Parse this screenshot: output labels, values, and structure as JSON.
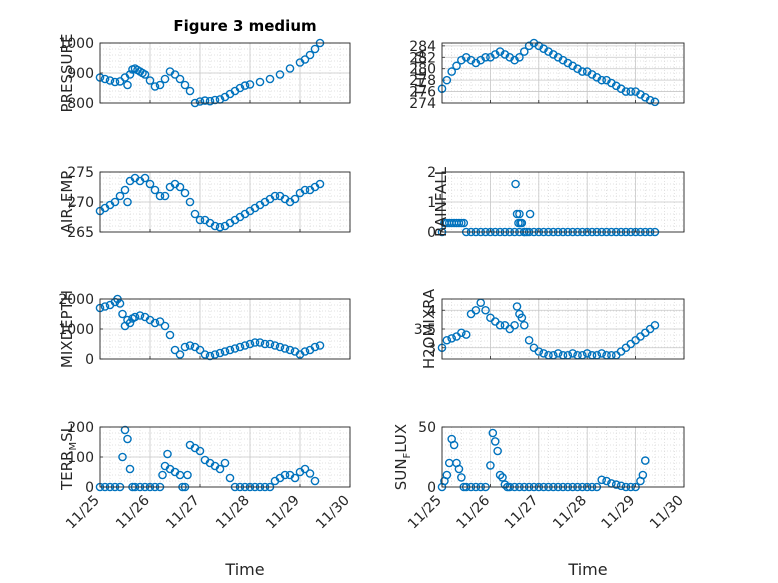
{
  "figure": {
    "title": "Figure 3 medium",
    "xlabel_left": "Time",
    "xlabel_right": "Time",
    "marker_color": "#0072BD",
    "grid_color": "#d9d9d9"
  },
  "chart_data": [
    {
      "type": "scatter",
      "ylabel": "PRESSURE",
      "xlim": [
        0,
        5
      ],
      "ylim": [
        800,
        1000
      ],
      "yticks": [
        800,
        900,
        1000
      ],
      "grid": true,
      "show_xticks": false,
      "x": [
        0.0,
        0.1,
        0.2,
        0.3,
        0.4,
        0.5,
        0.55,
        0.6,
        0.65,
        0.7,
        0.75,
        0.8,
        0.85,
        0.9,
        1.0,
        1.1,
        1.2,
        1.3,
        1.4,
        1.5,
        1.6,
        1.7,
        1.8,
        1.9,
        2.0,
        2.1,
        2.2,
        2.3,
        2.4,
        2.5,
        2.6,
        2.7,
        2.8,
        2.9,
        3.0,
        3.2,
        3.4,
        3.6,
        3.8,
        4.0,
        4.1,
        4.2,
        4.3,
        4.4
      ],
      "y": [
        885,
        880,
        875,
        870,
        872,
        885,
        860,
        895,
        912,
        915,
        910,
        905,
        900,
        895,
        875,
        855,
        860,
        880,
        905,
        895,
        880,
        860,
        840,
        800,
        805,
        808,
        806,
        810,
        812,
        820,
        830,
        840,
        850,
        858,
        862,
        870,
        880,
        895,
        915,
        935,
        945,
        960,
        980,
        1000
      ]
    },
    {
      "type": "scatter",
      "ylabel": "THETA",
      "xlim": [
        0,
        5
      ],
      "ylim": [
        274,
        284.5
      ],
      "yticks": [
        274,
        276,
        278,
        280,
        282,
        284
      ],
      "grid": true,
      "show_xticks": false,
      "x": [
        0.0,
        0.1,
        0.2,
        0.3,
        0.4,
        0.5,
        0.6,
        0.7,
        0.8,
        0.9,
        1.0,
        1.1,
        1.2,
        1.3,
        1.4,
        1.5,
        1.6,
        1.7,
        1.8,
        1.9,
        2.0,
        2.1,
        2.2,
        2.3,
        2.4,
        2.5,
        2.6,
        2.7,
        2.8,
        2.9,
        3.0,
        3.1,
        3.2,
        3.3,
        3.4,
        3.5,
        3.6,
        3.7,
        3.8,
        3.9,
        4.0,
        4.1,
        4.2,
        4.3,
        4.4
      ],
      "y": [
        276.5,
        278,
        279.5,
        280.5,
        281.5,
        282,
        281.5,
        281,
        281.5,
        282,
        282,
        282.5,
        283,
        282.5,
        282,
        281.5,
        282,
        283,
        284,
        284.5,
        284,
        283.5,
        283,
        282.5,
        282,
        281.5,
        281,
        280.5,
        280,
        279.5,
        279.5,
        279,
        278.5,
        278,
        278,
        277.5,
        277,
        276.5,
        276,
        276,
        276,
        275.5,
        275,
        274.5,
        274.2
      ]
    },
    {
      "type": "scatter",
      "ylabel": "AIR_TEMP",
      "xlim": [
        0,
        5
      ],
      "ylim": [
        265,
        275
      ],
      "yticks": [
        265,
        270,
        275
      ],
      "grid": true,
      "show_xticks": false,
      "x": [
        0.0,
        0.1,
        0.2,
        0.3,
        0.4,
        0.5,
        0.55,
        0.6,
        0.7,
        0.8,
        0.9,
        1.0,
        1.1,
        1.2,
        1.3,
        1.4,
        1.5,
        1.6,
        1.7,
        1.8,
        1.9,
        2.0,
        2.1,
        2.2,
        2.3,
        2.4,
        2.5,
        2.6,
        2.7,
        2.8,
        2.9,
        3.0,
        3.1,
        3.2,
        3.3,
        3.4,
        3.5,
        3.6,
        3.7,
        3.8,
        3.9,
        4.0,
        4.1,
        4.2,
        4.3,
        4.4
      ],
      "y": [
        268.5,
        269,
        269.5,
        270,
        271,
        272,
        270,
        273.5,
        274,
        273.5,
        274,
        273,
        272,
        271,
        271,
        272.5,
        273,
        272.5,
        271.5,
        270,
        268,
        267,
        267,
        266.5,
        266,
        265.8,
        266,
        266.5,
        267,
        267.5,
        268,
        268.5,
        269,
        269.5,
        270,
        270.5,
        271,
        271,
        270.5,
        270,
        270.5,
        271.5,
        272,
        272,
        272.5,
        273
      ]
    },
    {
      "type": "scatter",
      "ylabel": "RAINFALL",
      "xlim": [
        0,
        5
      ],
      "ylim": [
        0,
        2
      ],
      "yticks": [
        0,
        1,
        2
      ],
      "grid": true,
      "show_xticks": false,
      "x": [
        0.0,
        0.05,
        0.1,
        0.15,
        0.2,
        0.25,
        0.3,
        0.35,
        0.4,
        0.45,
        0.5,
        0.6,
        0.7,
        0.8,
        0.9,
        1.0,
        1.1,
        1.2,
        1.3,
        1.4,
        1.5,
        1.6,
        1.7,
        1.8,
        1.9,
        2.0,
        2.1,
        2.2,
        2.3,
        2.4,
        2.5,
        2.6,
        2.7,
        2.8,
        2.9,
        3.0,
        3.1,
        3.2,
        3.3,
        3.4,
        3.5,
        3.6,
        3.7,
        3.8,
        3.9,
        4.0,
        4.1,
        4.2,
        4.3,
        4.4,
        1.52,
        1.55,
        1.58,
        1.6,
        1.62,
        1.65,
        1.7,
        1.75,
        1.82
      ],
      "y": [
        0.0,
        0.3,
        0.3,
        0.3,
        0.3,
        0.3,
        0.3,
        0.3,
        0.3,
        0.3,
        0.0,
        0.0,
        0.0,
        0.0,
        0.0,
        0.0,
        0.0,
        0.0,
        0.0,
        0.0,
        0.0,
        0.0,
        0.0,
        0.0,
        0.0,
        0.0,
        0.0,
        0.0,
        0.0,
        0.0,
        0.0,
        0.0,
        0.0,
        0.0,
        0.0,
        0.0,
        0.0,
        0.0,
        0.0,
        0.0,
        0.0,
        0.0,
        0.0,
        0.0,
        0.0,
        0.0,
        0.0,
        0.0,
        0.0,
        0.0,
        1.6,
        0.6,
        0.3,
        0.6,
        0.3,
        0.3,
        0.0,
        0.0,
        0.6
      ]
    },
    {
      "type": "scatter",
      "ylabel": "MIXDEPTH",
      "xlim": [
        0,
        5
      ],
      "ylim": [
        0,
        2000
      ],
      "yticks": [
        0,
        1000,
        2000
      ],
      "grid": true,
      "show_xticks": false,
      "x": [
        0.0,
        0.1,
        0.2,
        0.3,
        0.35,
        0.4,
        0.45,
        0.5,
        0.55,
        0.6,
        0.65,
        0.7,
        0.8,
        0.9,
        1.0,
        1.1,
        1.2,
        1.3,
        1.4,
        1.5,
        1.6,
        1.7,
        1.8,
        1.9,
        2.0,
        2.1,
        2.2,
        2.3,
        2.4,
        2.5,
        2.6,
        2.7,
        2.8,
        2.9,
        3.0,
        3.1,
        3.2,
        3.3,
        3.4,
        3.5,
        3.6,
        3.7,
        3.8,
        3.9,
        4.0,
        4.1,
        4.2,
        4.3,
        4.4
      ],
      "y": [
        1700,
        1750,
        1800,
        1900,
        2000,
        1850,
        1500,
        1100,
        1300,
        1200,
        1350,
        1400,
        1450,
        1400,
        1300,
        1200,
        1250,
        1100,
        800,
        300,
        150,
        400,
        450,
        400,
        300,
        150,
        100,
        150,
        200,
        250,
        300,
        350,
        400,
        450,
        500,
        550,
        550,
        500,
        500,
        450,
        400,
        350,
        300,
        250,
        150,
        250,
        300,
        400,
        450
      ]
    },
    {
      "type": "scatter",
      "ylabel": "H2OMIXRA",
      "xlim": [
        0,
        5
      ],
      "ylim": [
        2.7,
        4.3
      ],
      "yticks": [
        3,
        3.5,
        4
      ],
      "grid": true,
      "show_xticks": false,
      "x": [
        0.0,
        0.1,
        0.2,
        0.3,
        0.4,
        0.5,
        0.6,
        0.7,
        0.8,
        0.9,
        1.0,
        1.1,
        1.2,
        1.3,
        1.4,
        1.5,
        1.55,
        1.6,
        1.65,
        1.7,
        1.8,
        1.9,
        2.0,
        2.1,
        2.2,
        2.3,
        2.4,
        2.5,
        2.6,
        2.7,
        2.8,
        2.9,
        3.0,
        3.1,
        3.2,
        3.3,
        3.4,
        3.5,
        3.6,
        3.7,
        3.8,
        3.9,
        4.0,
        4.1,
        4.2,
        4.3,
        4.4
      ],
      "y": [
        3.0,
        3.2,
        3.25,
        3.3,
        3.4,
        3.35,
        3.9,
        4.0,
        4.2,
        4.0,
        3.8,
        3.7,
        3.6,
        3.6,
        3.5,
        3.6,
        4.1,
        3.9,
        3.8,
        3.6,
        3.2,
        3.0,
        2.9,
        2.85,
        2.8,
        2.8,
        2.85,
        2.8,
        2.8,
        2.85,
        2.8,
        2.8,
        2.85,
        2.8,
        2.8,
        2.85,
        2.8,
        2.8,
        2.8,
        2.9,
        3.0,
        3.1,
        3.2,
        3.3,
        3.4,
        3.5,
        3.6
      ]
    },
    {
      "type": "scatter",
      "ylabel": "TERR_MSL",
      "xlim": [
        0,
        5
      ],
      "ylim": [
        0,
        200
      ],
      "yticks": [
        0,
        100,
        200
      ],
      "grid": true,
      "show_xticks": true,
      "xticks": [
        0,
        1,
        2,
        3,
        4,
        5
      ],
      "xticklabels": [
        "11/25",
        "11/26",
        "11/27",
        "11/28",
        "11/29",
        "11/30"
      ],
      "x": [
        0.0,
        0.1,
        0.2,
        0.3,
        0.4,
        0.45,
        0.5,
        0.55,
        0.6,
        0.65,
        0.7,
        0.8,
        0.9,
        1.0,
        1.1,
        1.2,
        1.25,
        1.3,
        1.35,
        1.4,
        1.5,
        1.6,
        1.65,
        1.7,
        1.75,
        1.8,
        1.9,
        2.0,
        2.1,
        2.2,
        2.3,
        2.4,
        2.5,
        2.6,
        2.7,
        2.8,
        2.9,
        3.0,
        3.1,
        3.2,
        3.3,
        3.4,
        3.5,
        3.6,
        3.7,
        3.8,
        3.9,
        4.0,
        4.1,
        4.2,
        4.3
      ],
      "y": [
        0,
        0,
        0,
        0,
        0,
        100,
        190,
        160,
        60,
        0,
        0,
        0,
        0,
        0,
        0,
        0,
        40,
        70,
        110,
        60,
        50,
        40,
        0,
        0,
        40,
        140,
        130,
        120,
        90,
        80,
        70,
        60,
        80,
        30,
        0,
        0,
        0,
        0,
        0,
        0,
        0,
        0,
        20,
        30,
        40,
        40,
        30,
        50,
        60,
        45,
        20
      ]
    },
    {
      "type": "scatter",
      "ylabel": "SUN_FLUX",
      "xlim": [
        0,
        5
      ],
      "ylim": [
        0,
        50
      ],
      "yticks": [
        0,
        50
      ],
      "grid": true,
      "show_xticks": true,
      "xticks": [
        0,
        1,
        2,
        3,
        4,
        5
      ],
      "xticklabels": [
        "11/25",
        "11/26",
        "11/27",
        "11/28",
        "11/29",
        "11/30"
      ],
      "x": [
        0.0,
        0.05,
        0.1,
        0.15,
        0.2,
        0.25,
        0.3,
        0.35,
        0.4,
        0.45,
        0.5,
        0.6,
        0.7,
        0.8,
        0.9,
        1.0,
        1.05,
        1.1,
        1.15,
        1.2,
        1.25,
        1.3,
        1.35,
        1.4,
        1.5,
        1.6,
        1.7,
        1.8,
        1.9,
        2.0,
        2.1,
        2.2,
        2.3,
        2.4,
        2.5,
        2.6,
        2.7,
        2.8,
        2.9,
        3.0,
        3.1,
        3.2,
        3.3,
        3.4,
        3.5,
        3.6,
        3.7,
        3.8,
        3.9,
        4.0,
        4.1,
        4.15,
        4.2
      ],
      "y": [
        0,
        5,
        10,
        20,
        40,
        35,
        20,
        15,
        8,
        0,
        0,
        0,
        0,
        0,
        0,
        18,
        45,
        38,
        30,
        10,
        8,
        2,
        0,
        0,
        0,
        0,
        0,
        0,
        0,
        0,
        0,
        0,
        0,
        0,
        0,
        0,
        0,
        0,
        0,
        0,
        0,
        0,
        6,
        5,
        3,
        2,
        1,
        0,
        0,
        0,
        5,
        10,
        22
      ]
    }
  ]
}
